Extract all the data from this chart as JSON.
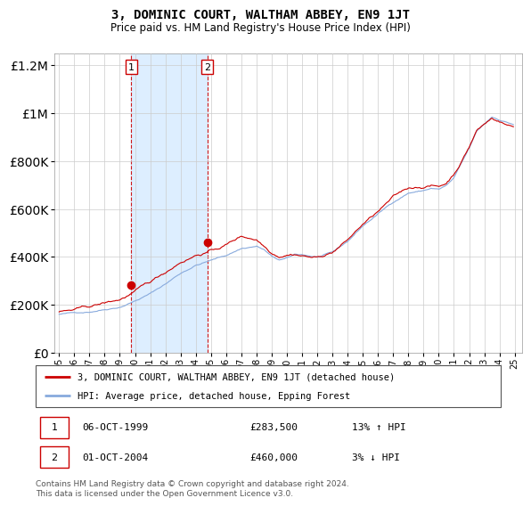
{
  "title": "3, DOMINIC COURT, WALTHAM ABBEY, EN9 1JT",
  "subtitle": "Price paid vs. HM Land Registry's House Price Index (HPI)",
  "legend_line1": "3, DOMINIC COURT, WALTHAM ABBEY, EN9 1JT (detached house)",
  "legend_line2": "HPI: Average price, detached house, Epping Forest",
  "footnote": "Contains HM Land Registry data © Crown copyright and database right 2024.\nThis data is licensed under the Open Government Licence v3.0.",
  "transaction1_date": "06-OCT-1999",
  "transaction1_price": "£283,500",
  "transaction1_hpi": "13% ↑ HPI",
  "transaction2_date": "01-OCT-2004",
  "transaction2_price": "£460,000",
  "transaction2_hpi": "3% ↓ HPI",
  "price_color": "#cc0000",
  "hpi_color": "#88aadd",
  "shading_color": "#ddeeff",
  "ylim": [
    0,
    1250000
  ],
  "yticks": [
    0,
    200000,
    400000,
    600000,
    800000,
    1000000,
    1200000
  ],
  "transaction1_x": 1999.75,
  "transaction1_y": 283500,
  "transaction2_x": 2004.75,
  "transaction2_y": 460000,
  "vline1_x": 1999.75,
  "vline2_x": 2004.75,
  "xmin": 1995.0,
  "xmax": 2025.5
}
